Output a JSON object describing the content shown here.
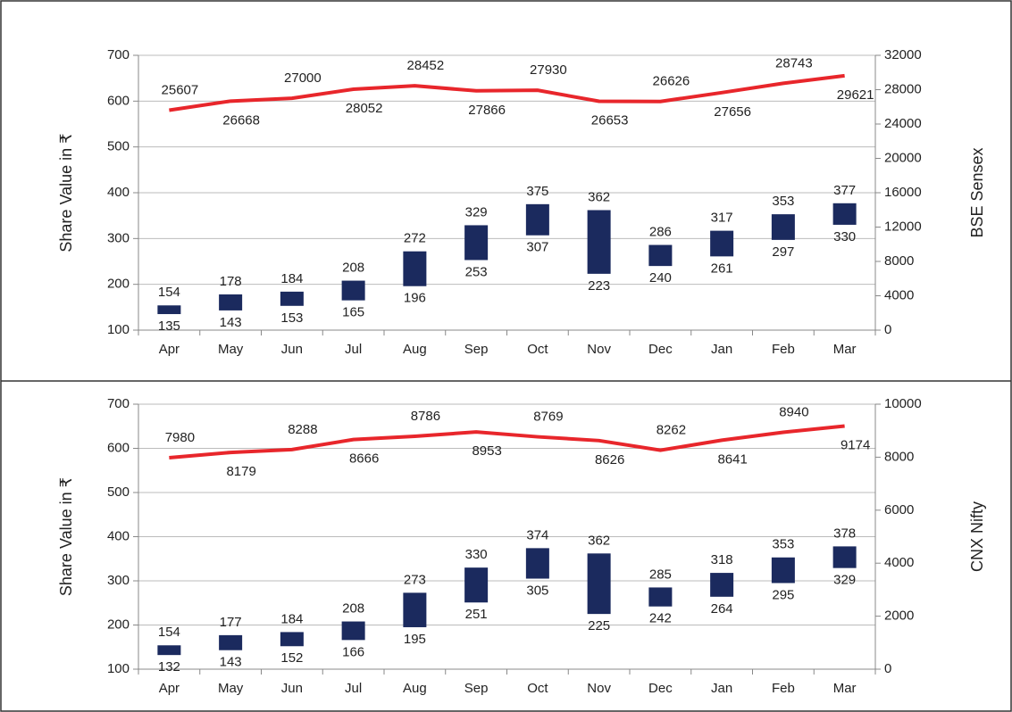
{
  "chart_data": [
    {
      "type": "range_bar",
      "y_label": "Share Value in ₹",
      "y2_label": "BSE Sensex",
      "categories": [
        "Apr",
        "May",
        "Jun",
        "Jul",
        "Aug",
        "Sep",
        "Oct",
        "Nov",
        "Dec",
        "Jan",
        "Feb",
        "Mar"
      ],
      "series": [
        {
          "color": "#1b2a5e",
          "values": [
            154,
            178,
            184,
            208,
            272,
            329,
            375,
            362,
            286,
            317,
            353,
            377
          ]
        },
        {
          "color": "#1b2a5e",
          "values": [
            135,
            143,
            153,
            165,
            196,
            253,
            307,
            223,
            240,
            261,
            297,
            330
          ]
        },
        {
          "color": "#e8262b",
          "axis": "y2",
          "values": [
            25607,
            26668,
            27000,
            28052,
            28452,
            27866,
            27930,
            26653,
            26626,
            27656,
            28743,
            29621
          ]
        }
      ],
      "ylim": [
        100,
        700
      ],
      "yticks": [
        100,
        200,
        300,
        400,
        500,
        600,
        700
      ],
      "y2lim": [
        0,
        32000
      ],
      "y2ticks": [
        0,
        4000,
        8000,
        12000,
        16000,
        20000,
        24000,
        28000,
        32000
      ],
      "grid": true
    },
    {
      "type": "range_bar",
      "y_label": "Share Value in ₹",
      "y2_label": "CNX Nifty",
      "categories": [
        "Apr",
        "May",
        "Jun",
        "Jul",
        "Aug",
        "Sep",
        "Oct",
        "Nov",
        "Dec",
        "Jan",
        "Feb",
        "Mar"
      ],
      "series": [
        {
          "color": "#1b2a5e",
          "values": [
            154,
            177,
            184,
            208,
            273,
            330,
            374,
            362,
            285,
            318,
            353,
            378
          ]
        },
        {
          "color": "#1b2a5e",
          "values": [
            132,
            143,
            152,
            166,
            195,
            251,
            305,
            225,
            242,
            264,
            295,
            329
          ]
        },
        {
          "color": "#e8262b",
          "axis": "y2",
          "values": [
            7980,
            8179,
            8288,
            8666,
            8786,
            8953,
            8769,
            8626,
            8262,
            8641,
            8940,
            9174
          ]
        }
      ],
      "ylim": [
        100,
        700
      ],
      "yticks": [
        100,
        200,
        300,
        400,
        500,
        600,
        700
      ],
      "y2lim": [
        0,
        10000
      ],
      "y2ticks": [
        0,
        2000,
        4000,
        6000,
        8000,
        10000
      ],
      "grid": true
    }
  ]
}
